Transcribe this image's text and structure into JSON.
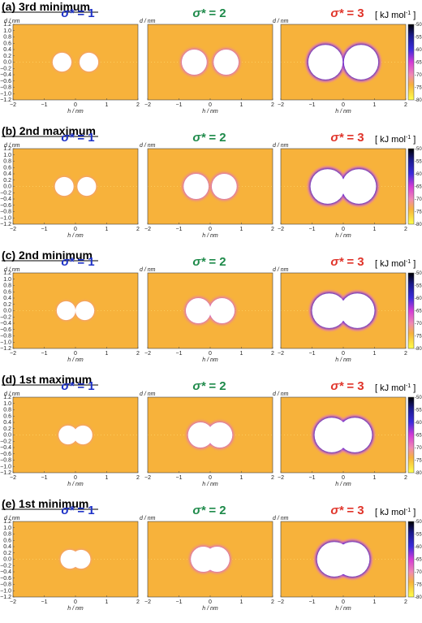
{
  "figure": {
    "colorbar_unit": "[ kJ mol",
    "colorbar_unit_sup": "-1",
    "colorbar_unit_close": " ]",
    "axis_x_label": "h / nm",
    "axis_y_label": "d / nm",
    "sigma_prefix": "σ*",
    "sigma_eq": " = ",
    "colors": {
      "background_field": "#f7b23b",
      "sigma_1": "#1f33c8",
      "sigma_2": "#1e8a4a",
      "sigma_3": "#e0342a"
    }
  },
  "chart_data": {
    "type": "heatmap",
    "xticks": [
      "−2",
      "−1",
      "0",
      "1",
      "2"
    ],
    "yticks": [
      "1.2",
      "1.0",
      "0.8",
      "0.6",
      "0.4",
      "0.2",
      "0.0",
      "−0.2",
      "−0.4",
      "−0.6",
      "−0.8",
      "−1.0",
      "−1.2"
    ],
    "xlim": [
      -2,
      2
    ],
    "ylim": [
      -1.2,
      1.2
    ],
    "colorbar": {
      "ticks": [
        "-50",
        "-55",
        "-60",
        "-65",
        "-70",
        "-75",
        "-80"
      ],
      "range": [
        -80,
        -50
      ]
    },
    "sigma_values": [
      "1",
      "2",
      "3"
    ],
    "rows": [
      {
        "title": "(a) 3rd minimum",
        "separation": [
          0.86,
          1.02,
          1.14
        ]
      },
      {
        "title": "(b) 2nd maximum",
        "separation": [
          0.72,
          0.9,
          1.0
        ]
      },
      {
        "title": "(c) 2nd minimum",
        "separation": [
          0.6,
          0.76,
          0.9
        ]
      },
      {
        "title": "(d) 1st maximum",
        "separation": [
          0.48,
          0.62,
          0.74
        ]
      },
      {
        "title": "(e) 1st minimum",
        "separation": [
          0.36,
          0.44,
          0.58
        ]
      }
    ],
    "particle_radius": [
      0.3,
      0.4,
      0.55
    ]
  }
}
